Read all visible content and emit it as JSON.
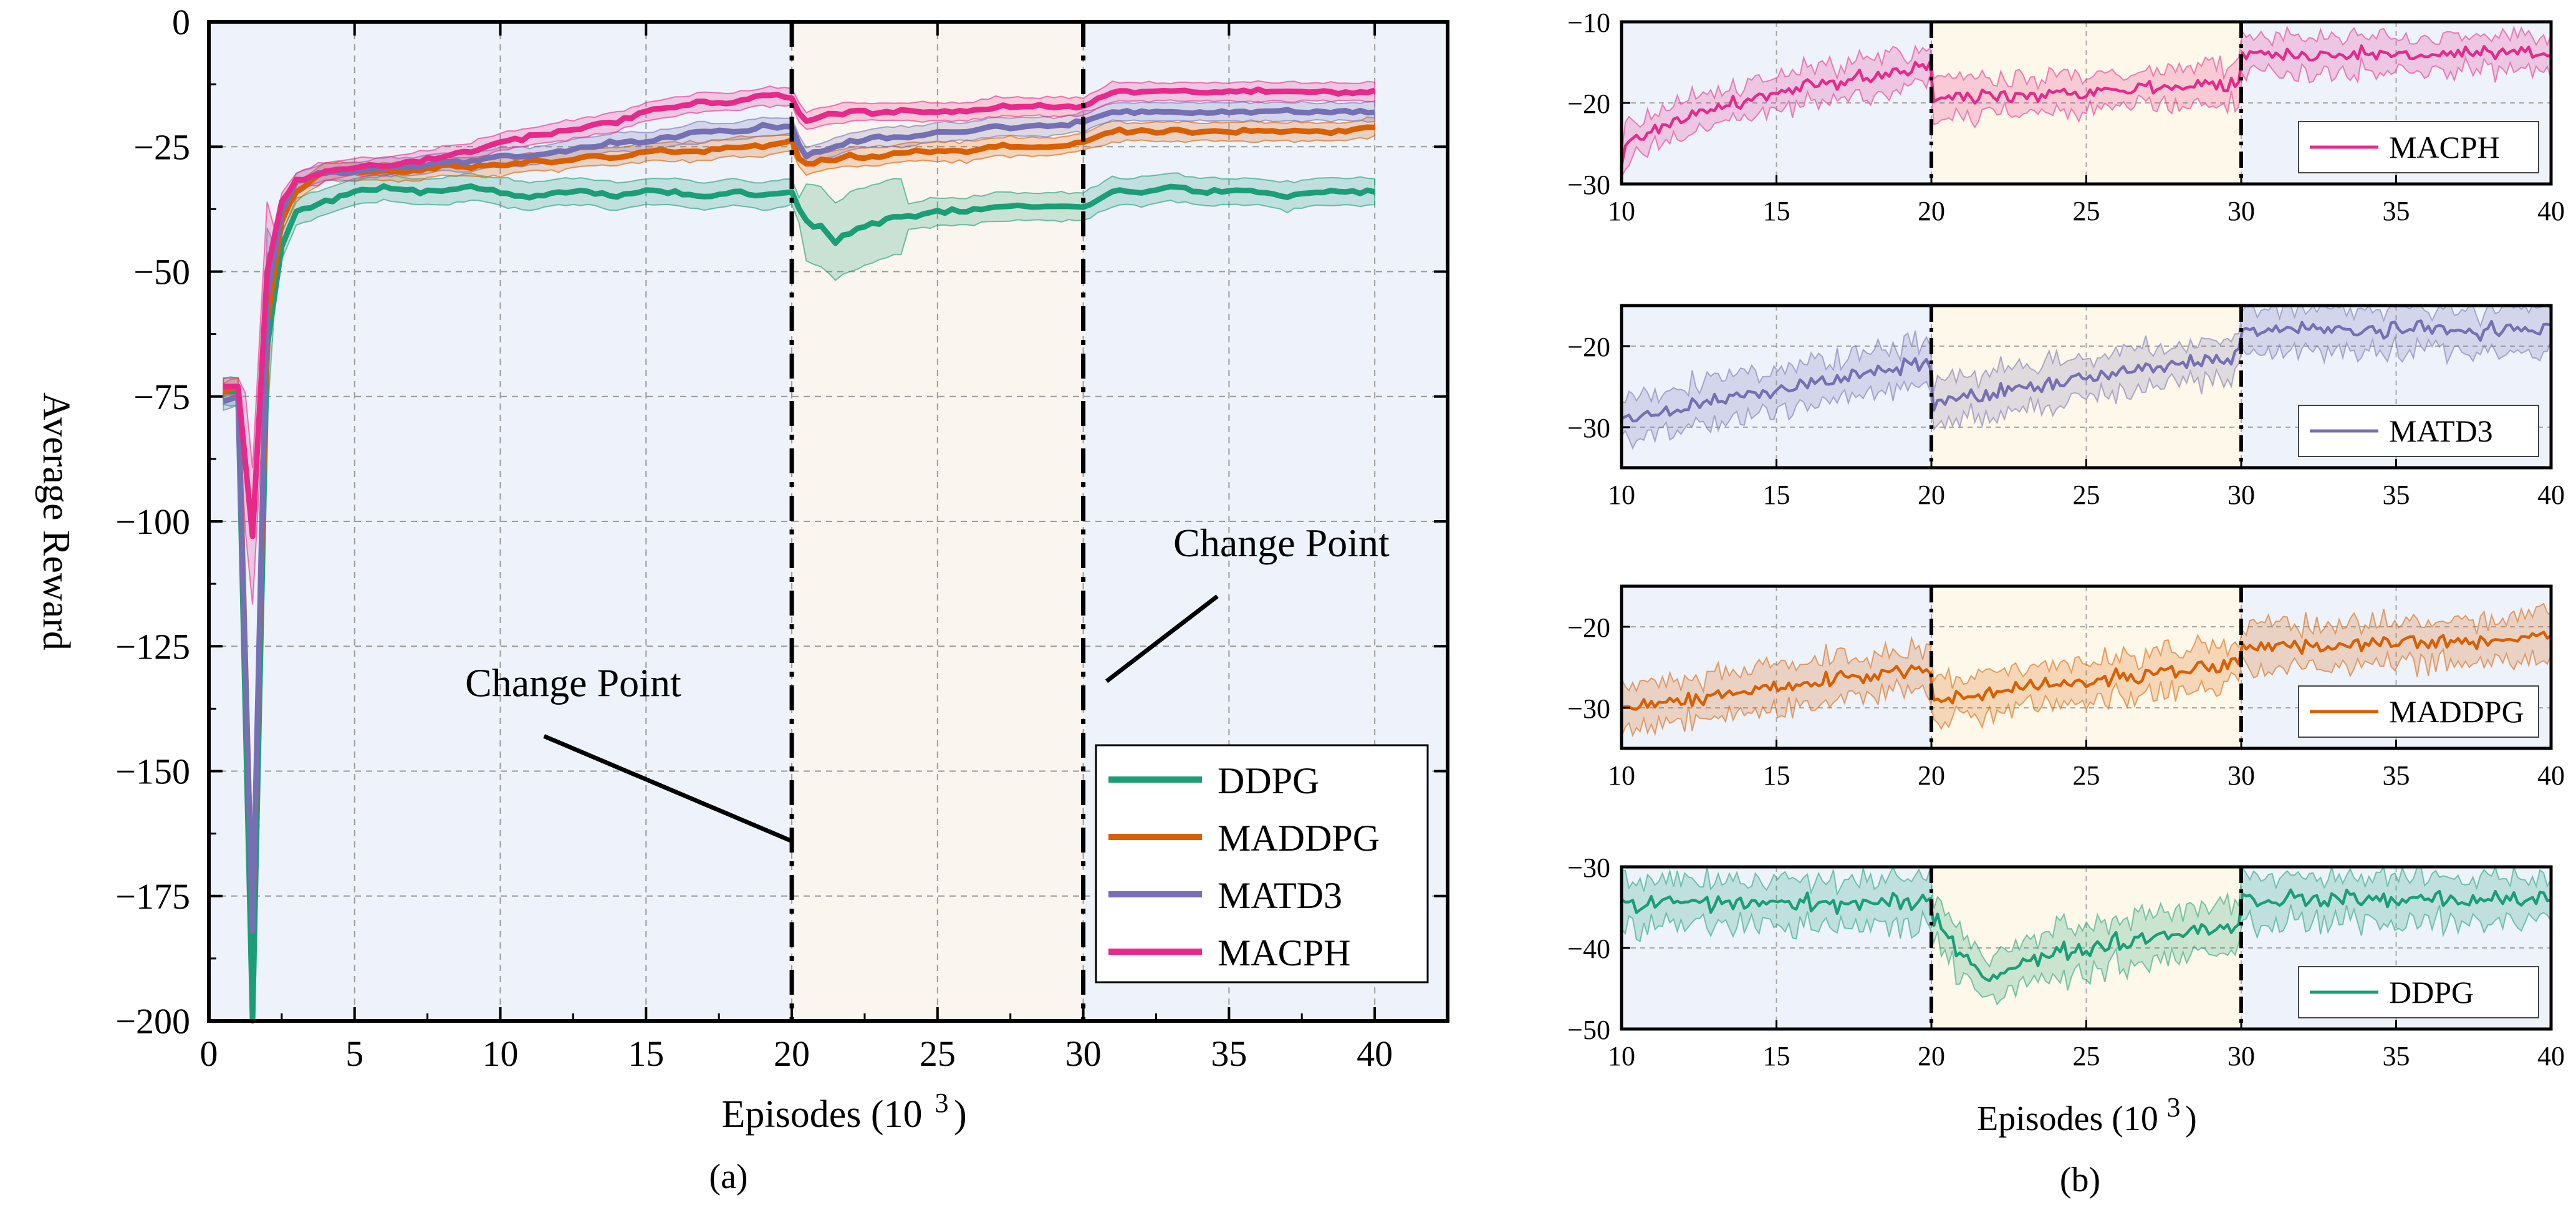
{
  "chart_data": [
    {
      "panel": "a",
      "type": "line",
      "caption": "(a)",
      "xlabel": "Episodes (10",
      "xlabel_exp": "3",
      "xlabel_close": ")",
      "ylabel": "Average Reward",
      "xlim": [
        0,
        42.5
      ],
      "ylim": [
        -200,
        0
      ],
      "xticks": [
        0,
        5,
        10,
        15,
        20,
        25,
        30,
        35,
        40
      ],
      "yticks": [
        0,
        -25,
        -50,
        -75,
        -100,
        -125,
        -150,
        -175,
        -200
      ],
      "ytick_labels": [
        "0",
        "−25",
        "−50",
        "−75",
        "−100",
        "−125",
        "−150",
        "−175",
        "−200"
      ],
      "grid": true,
      "regions": [
        {
          "from": 0,
          "to": 20,
          "color": "#eef3fb"
        },
        {
          "from": 20,
          "to": 30,
          "color": "#fbf5ef"
        },
        {
          "from": 30,
          "to": 42.5,
          "color": "#eef3fb"
        }
      ],
      "change_points": [
        20,
        30
      ],
      "annotations": [
        {
          "text": "Change Point",
          "text_at": [
            12.5,
            -135
          ],
          "line_from": [
            11.5,
            -143
          ],
          "line_to": [
            20,
            -164
          ]
        },
        {
          "text": "Change Point",
          "text_at": [
            36.8,
            -107
          ],
          "line_from": [
            34.6,
            -115
          ],
          "line_to": [
            30.8,
            -132
          ]
        }
      ],
      "legend": {
        "position": "bottom-right",
        "entries": [
          "DDPG",
          "MADDPG",
          "MATD3",
          "MACPH"
        ]
      },
      "series": [
        {
          "name": "DDPG",
          "color": "#1b9e77",
          "points": [
            [
              0.5,
              -74
            ],
            [
              1,
              -74
            ],
            [
              1.5,
              -200
            ],
            [
              2,
              -65
            ],
            [
              2.5,
              -45
            ],
            [
              3,
              -38
            ],
            [
              4,
              -36
            ],
            [
              5,
              -34
            ],
            [
              6,
              -33
            ],
            [
              7,
              -34
            ],
            [
              8,
              -34
            ],
            [
              9,
              -33
            ],
            [
              10,
              -34
            ],
            [
              11,
              -35
            ],
            [
              12,
              -34
            ],
            [
              13,
              -34
            ],
            [
              14,
              -35
            ],
            [
              15,
              -34
            ],
            [
              16,
              -34
            ],
            [
              17,
              -35
            ],
            [
              18,
              -34
            ],
            [
              19,
              -35
            ],
            [
              20,
              -34
            ],
            [
              20.4,
              -40
            ],
            [
              21,
              -41
            ],
            [
              21.5,
              -44
            ],
            [
              22,
              -42
            ],
            [
              22.5,
              -41
            ],
            [
              23,
              -40
            ],
            [
              23.5,
              -39
            ],
            [
              24,
              -39
            ],
            [
              25,
              -38
            ],
            [
              26,
              -38
            ],
            [
              27,
              -37
            ],
            [
              28,
              -37
            ],
            [
              29,
              -37
            ],
            [
              30,
              -37
            ],
            [
              31,
              -34
            ],
            [
              32,
              -34
            ],
            [
              33,
              -33
            ],
            [
              34,
              -34
            ],
            [
              35,
              -34
            ],
            [
              36,
              -34
            ],
            [
              37,
              -35
            ],
            [
              38,
              -34
            ],
            [
              39,
              -34
            ],
            [
              40,
              -34
            ]
          ],
          "band": 2.5
        },
        {
          "name": "MADDPG",
          "color": "#d95f02",
          "points": [
            [
              0.5,
              -74
            ],
            [
              1,
              -73
            ],
            [
              1.5,
              -182
            ],
            [
              2,
              -60
            ],
            [
              2.5,
              -40
            ],
            [
              3,
              -34
            ],
            [
              4,
              -30
            ],
            [
              5,
              -30
            ],
            [
              6,
              -30
            ],
            [
              7,
              -30
            ],
            [
              8,
              -29
            ],
            [
              9,
              -29
            ],
            [
              10,
              -29
            ],
            [
              11,
              -28
            ],
            [
              12,
              -28
            ],
            [
              13,
              -27
            ],
            [
              14,
              -27
            ],
            [
              15,
              -26
            ],
            [
              16,
              -26
            ],
            [
              17,
              -26
            ],
            [
              18,
              -25
            ],
            [
              19,
              -25
            ],
            [
              20,
              -24
            ],
            [
              20.4,
              -29
            ],
            [
              21,
              -28
            ],
            [
              22,
              -27
            ],
            [
              23,
              -27
            ],
            [
              24,
              -26
            ],
            [
              25,
              -26
            ],
            [
              26,
              -26
            ],
            [
              27,
              -25
            ],
            [
              28,
              -25
            ],
            [
              29,
              -25
            ],
            [
              30,
              -24
            ],
            [
              31,
              -22
            ],
            [
              32,
              -22
            ],
            [
              33,
              -22
            ],
            [
              34,
              -22
            ],
            [
              35,
              -22
            ],
            [
              36,
              -22
            ],
            [
              37,
              -22
            ],
            [
              38,
              -22
            ],
            [
              39,
              -22
            ],
            [
              40,
              -21
            ]
          ],
          "band": 1.6
        },
        {
          "name": "MATD3",
          "color": "#7570b3",
          "points": [
            [
              0.5,
              -76
            ],
            [
              1,
              -75
            ],
            [
              1.5,
              -182
            ],
            [
              2,
              -55
            ],
            [
              2.5,
              -38
            ],
            [
              3,
              -32
            ],
            [
              4,
              -30
            ],
            [
              5,
              -30
            ],
            [
              6,
              -29
            ],
            [
              7,
              -29
            ],
            [
              8,
              -28
            ],
            [
              9,
              -28
            ],
            [
              10,
              -27
            ],
            [
              11,
              -27
            ],
            [
              12,
              -26
            ],
            [
              13,
              -25
            ],
            [
              14,
              -24
            ],
            [
              15,
              -24
            ],
            [
              16,
              -23
            ],
            [
              17,
              -22
            ],
            [
              18,
              -22
            ],
            [
              19,
              -21
            ],
            [
              20,
              -21
            ],
            [
              20.4,
              -27
            ],
            [
              21,
              -26
            ],
            [
              22,
              -24
            ],
            [
              23,
              -23
            ],
            [
              24,
              -23
            ],
            [
              25,
              -22
            ],
            [
              26,
              -22
            ],
            [
              27,
              -21
            ],
            [
              28,
              -21
            ],
            [
              29,
              -21
            ],
            [
              30,
              -20
            ],
            [
              31,
              -18
            ],
            [
              32,
              -18
            ],
            [
              33,
              -18
            ],
            [
              34,
              -18
            ],
            [
              35,
              -18
            ],
            [
              36,
              -18
            ],
            [
              37,
              -18
            ],
            [
              38,
              -18
            ],
            [
              39,
              -18
            ],
            [
              40,
              -18
            ]
          ],
          "band": 1.6
        },
        {
          "name": "MACPH",
          "color": "#e7298a",
          "points": [
            [
              0.5,
              -73
            ],
            [
              1,
              -73
            ],
            [
              1.5,
              -103
            ],
            [
              2,
              -50
            ],
            [
              2.5,
              -36
            ],
            [
              3,
              -32
            ],
            [
              4,
              -30
            ],
            [
              5,
              -29
            ],
            [
              6,
              -29
            ],
            [
              7,
              -28
            ],
            [
              8,
              -27
            ],
            [
              9,
              -26
            ],
            [
              10,
              -24
            ],
            [
              11,
              -23
            ],
            [
              12,
              -22
            ],
            [
              13,
              -21
            ],
            [
              14,
              -20
            ],
            [
              15,
              -18
            ],
            [
              16,
              -17
            ],
            [
              17,
              -16
            ],
            [
              18,
              -16
            ],
            [
              19,
              -15
            ],
            [
              20,
              -15
            ],
            [
              20.4,
              -20
            ],
            [
              21,
              -19
            ],
            [
              22,
              -18
            ],
            [
              23,
              -18
            ],
            [
              24,
              -18
            ],
            [
              25,
              -18
            ],
            [
              26,
              -18
            ],
            [
              27,
              -17
            ],
            [
              28,
              -17
            ],
            [
              29,
              -17
            ],
            [
              30,
              -17
            ],
            [
              31,
              -14
            ],
            [
              32,
              -14
            ],
            [
              33,
              -14
            ],
            [
              34,
              -14
            ],
            [
              35,
              -14
            ],
            [
              36,
              -14
            ],
            [
              37,
              -14
            ],
            [
              38,
              -14
            ],
            [
              39,
              -14
            ],
            [
              40,
              -14
            ]
          ],
          "band": 1.6
        }
      ]
    },
    {
      "panel": "b",
      "type": "line",
      "caption": "(b)",
      "xlabel": "Episodes (10",
      "xlabel_exp": "3",
      "xlabel_close": ")",
      "xlim": [
        10,
        40
      ],
      "xticks": [
        10,
        15,
        20,
        25,
        30,
        35,
        40
      ],
      "change_points": [
        20,
        30
      ],
      "regions": [
        {
          "from": 10,
          "to": 20,
          "color": "#eef3fb"
        },
        {
          "from": 20,
          "to": 30,
          "color": "#fdf8ea"
        },
        {
          "from": 30,
          "to": 40,
          "color": "#eef3fb"
        }
      ],
      "subplots": [
        {
          "name": "MACPH",
          "color": "#e7298a",
          "ylim": [
            -30,
            -10
          ],
          "yticks": [
            -10,
            -20,
            -30
          ],
          "ytick_labels": [
            "−10",
            "−20",
            "−30"
          ],
          "segments": [
            {
              "from": 10,
              "to": 20,
              "start": -27,
              "end": -15.5,
              "curve": "sqrt"
            },
            {
              "from": 20,
              "to": 30,
              "start": -19.5,
              "end": -17.5
            },
            {
              "from": 30,
              "to": 40,
              "start": -14,
              "end": -14
            }
          ],
          "noise": 1.3,
          "band": 2.2
        },
        {
          "name": "MATD3",
          "color": "#7570b3",
          "ylim": [
            -35,
            -15
          ],
          "yticks": [
            -20,
            -30
          ],
          "ytick_labels": [
            "−20",
            "−30"
          ],
          "segments": [
            {
              "from": 10,
              "to": 20,
              "start": -29,
              "end": -22
            },
            {
              "from": 20,
              "to": 30,
              "start": -27,
              "end": -21
            },
            {
              "from": 30,
              "to": 40,
              "start": -18,
              "end": -18
            }
          ],
          "noise": 1.4,
          "band": 2.6
        },
        {
          "name": "MADDPG",
          "color": "#d95f02",
          "ylim": [
            -35,
            -15
          ],
          "yticks": [
            -20,
            -30
          ],
          "ytick_labels": [
            "−20",
            "−30"
          ],
          "segments": [
            {
              "from": 10,
              "to": 20,
              "start": -30,
              "end": -25
            },
            {
              "from": 20,
              "to": 30,
              "start": -29,
              "end": -24.5
            },
            {
              "from": 30,
              "to": 40,
              "start": -22.5,
              "end": -21.5
            }
          ],
          "noise": 1.4,
          "band": 2.6
        },
        {
          "name": "DDPG",
          "color": "#1b9e77",
          "ylim": [
            -50,
            -30
          ],
          "yticks": [
            -30,
            -40,
            -50
          ],
          "ytick_labels": [
            "−30",
            "−40",
            "−50"
          ],
          "segments": [
            {
              "from": 10,
              "to": 20,
              "start": -34.5,
              "end": -34.5
            },
            {
              "from": 20,
              "to": 30,
              "start": -42,
              "end": -37,
              "curve": "dip"
            },
            {
              "from": 30,
              "to": 40,
              "start": -34,
              "end": -34
            }
          ],
          "noise": 1.6,
          "band": 2.8
        }
      ]
    }
  ]
}
